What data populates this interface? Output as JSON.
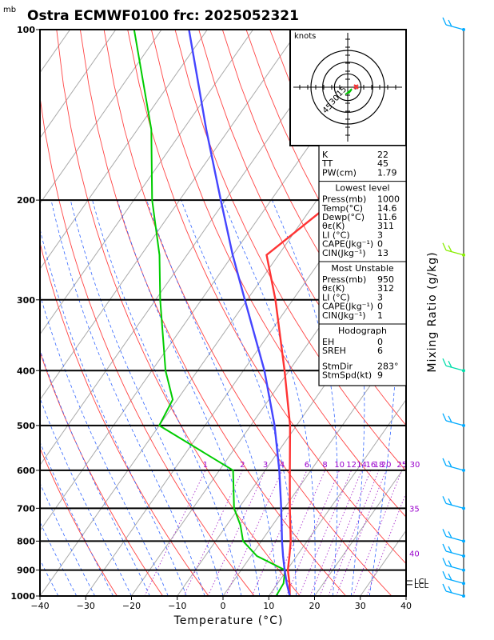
{
  "header": {
    "unit_mb": "mb",
    "title": "Ostra ECMWF0100 frc: 2025052321"
  },
  "chart_data": {
    "type": "skew-t",
    "title": "Ostra ECMWF0100 frc: 2025052321",
    "xlabel": "Temperature (°C)",
    "ylabel_right": "Mixing Ratio (g/kg)",
    "y_unit": "mb",
    "y_log": true,
    "ylim": [
      1000,
      100
    ],
    "xlim": [
      -40,
      40
    ],
    "x_ticks": [
      "−40",
      "−30",
      "−20",
      "−10",
      "0",
      "10",
      "20",
      "30",
      "40"
    ],
    "x_tick_values": [
      -40,
      -30,
      -20,
      -10,
      0,
      10,
      20,
      30,
      40
    ],
    "y_ticks": [
      100,
      200,
      300,
      400,
      500,
      600,
      700,
      800,
      900,
      1000
    ],
    "mixing_ratio_labels": [
      "1",
      "2",
      "3",
      "4",
      "6",
      "8",
      "10",
      "12",
      "14",
      "16",
      "18",
      "20",
      "25",
      "30"
    ],
    "mixing_ratio_values": [
      1,
      2,
      3,
      4,
      6,
      8,
      10,
      12,
      14,
      16,
      18,
      20,
      25,
      30
    ],
    "side_labels": [
      "35",
      "40"
    ],
    "lcl_labels": [
      "LCL",
      "LCL"
    ],
    "lcl_pressures": [
      940,
      955
    ],
    "series": [
      {
        "name": "Temperature",
        "color": "#ff3333",
        "points": [
          [
            1000,
            14.6
          ],
          [
            950,
            12.6
          ],
          [
            900,
            10.2
          ],
          [
            850,
            8.4
          ],
          [
            800,
            6.4
          ],
          [
            700,
            1.2
          ],
          [
            600,
            -4.6
          ],
          [
            500,
            -11.4
          ],
          [
            400,
            -21.0
          ],
          [
            300,
            -33.8
          ],
          [
            250,
            -42.6
          ],
          [
            200,
            -36.0
          ],
          [
            150,
            -21.0
          ],
          [
            100,
            -4.0
          ]
        ]
      },
      {
        "name": "Dewpoint",
        "color": "#00cc00",
        "points": [
          [
            1000,
            11.6
          ],
          [
            950,
            11.3
          ],
          [
            900,
            9.6
          ],
          [
            850,
            1.3
          ],
          [
            800,
            -4.0
          ],
          [
            750,
            -7.0
          ],
          [
            700,
            -11.0
          ],
          [
            600,
            -17.0
          ],
          [
            500,
            -40.0
          ],
          [
            450,
            -41.0
          ],
          [
            400,
            -47.0
          ],
          [
            300,
            -59.0
          ],
          [
            250,
            -66.0
          ],
          [
            200,
            -76.0
          ],
          [
            150,
            -87.0
          ],
          [
            100,
            -106.0
          ]
        ]
      },
      {
        "name": "Parcel",
        "color": "#4444ff",
        "points": [
          [
            1000,
            14.6
          ],
          [
            950,
            12.0
          ],
          [
            900,
            9.5
          ],
          [
            850,
            7.0
          ],
          [
            800,
            4.5
          ],
          [
            700,
            -0.7
          ],
          [
            600,
            -6.9
          ],
          [
            500,
            -14.8
          ],
          [
            400,
            -25.4
          ],
          [
            300,
            -40.5
          ],
          [
            250,
            -50.0
          ],
          [
            200,
            -61.0
          ],
          [
            150,
            -75.0
          ],
          [
            100,
            -94.0
          ]
        ]
      }
    ],
    "wind_barbs": [
      {
        "p": 1000,
        "color": "#00aaff"
      },
      {
        "p": 950,
        "color": "#00aaff"
      },
      {
        "p": 900,
        "color": "#00aaff"
      },
      {
        "p": 850,
        "color": "#00aaff"
      },
      {
        "p": 800,
        "color": "#00aaff"
      },
      {
        "p": 700,
        "color": "#00aaff"
      },
      {
        "p": 600,
        "color": "#00aaff"
      },
      {
        "p": 500,
        "color": "#00aaff"
      },
      {
        "p": 400,
        "color": "#00ddaa"
      },
      {
        "p": 250,
        "color": "#88ee00"
      },
      {
        "p": 100,
        "color": "#00aaff"
      }
    ],
    "hodograph": {
      "unit": "knots",
      "ring_labels": [
        "15",
        "30",
        "45"
      ],
      "ring_values": [
        15,
        30,
        45
      ]
    }
  },
  "indices": {
    "top": [
      {
        "label": "K",
        "value": "22"
      },
      {
        "label": "TT",
        "value": "45"
      },
      {
        "label": "PW(cm)",
        "value": "1.79"
      }
    ],
    "lowest_title": "Lowest level",
    "lowest": [
      {
        "label": "Press(mb)",
        "value": "1000"
      },
      {
        "label": "Temp(°C)",
        "value": "14.6"
      },
      {
        "label": "Dewp(°C)",
        "value": "11.6"
      },
      {
        "label": "θε(K)",
        "value": "311"
      },
      {
        "label": "LI (°C)",
        "value": "3"
      },
      {
        "label": "CAPE(Jkg⁻¹)",
        "value": "0"
      },
      {
        "label": "CIN(Jkg⁻¹)",
        "value": "13"
      }
    ],
    "unstable_title": "Most Unstable",
    "unstable": [
      {
        "label": "Press(mb)",
        "value": "950"
      },
      {
        "label": "θε(K)",
        "value": "312"
      },
      {
        "label": "LI (°C)",
        "value": "3"
      },
      {
        "label": "CAPE(Jkg⁻¹)",
        "value": "0"
      },
      {
        "label": "CIN(Jkg⁻¹)",
        "value": "1"
      }
    ],
    "hodo_title": "Hodograph",
    "hodo": [
      {
        "label": "EH",
        "value": "0"
      },
      {
        "label": "SREH",
        "value": "6"
      }
    ],
    "storm": [
      {
        "label": "StmDir",
        "value": "283°"
      },
      {
        "label": "StmSpd(kt)",
        "value": "9"
      }
    ]
  }
}
